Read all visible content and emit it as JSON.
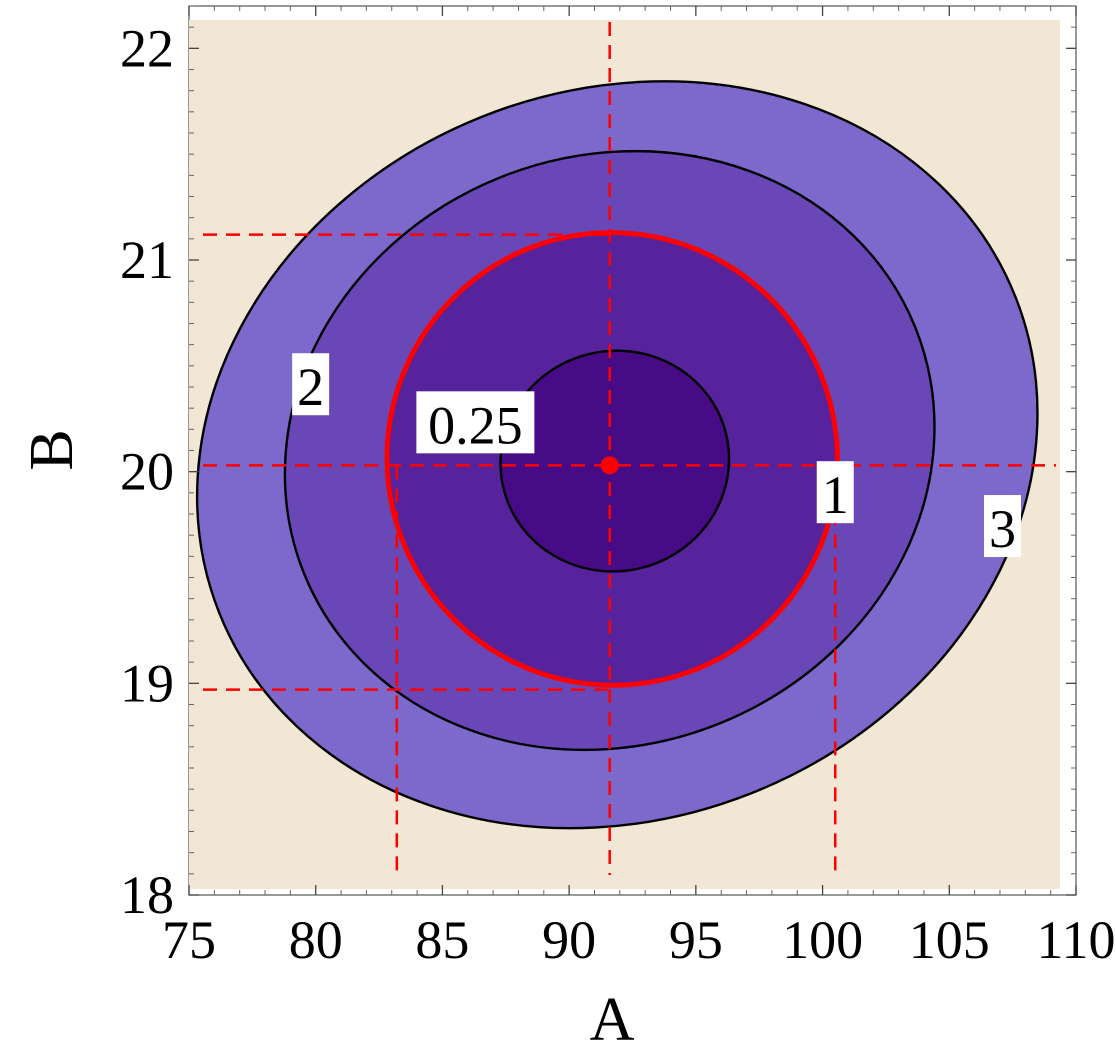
{
  "chart_data": {
    "type": "contour",
    "title": "",
    "xlabel": "A",
    "ylabel": "B",
    "xlim": [
      75,
      110
    ],
    "ylim": [
      18,
      22.2
    ],
    "xticks": [
      75,
      80,
      85,
      90,
      95,
      100,
      105,
      110
    ],
    "yticks": [
      18,
      19,
      20,
      21,
      22
    ],
    "xtick_labels": [
      "75",
      "80",
      "85",
      "90",
      "95",
      "100",
      "105",
      "110"
    ],
    "ytick_labels": [
      "18",
      "19",
      "20",
      "21",
      "22"
    ],
    "grid": false,
    "best_fit": {
      "A": 91.6,
      "B": 20.03
    },
    "contours": [
      {
        "level_label": "3",
        "center": [
          91.9,
          20.08
        ],
        "semi_axes": [
          16.9,
          1.72
        ],
        "tilt_deg": -21.6,
        "fill": "#7d69cc",
        "stroke": "#000000"
      },
      {
        "level_label": "2",
        "center": [
          91.6,
          20.1
        ],
        "semi_axes": [
          13.0,
          1.39
        ],
        "tilt_deg": -21.9,
        "fill": "#6a47b6",
        "stroke": "#000000"
      },
      {
        "level_label": "1",
        "center": [
          91.7,
          20.06
        ],
        "semi_axes": [
          8.88,
          1.07
        ],
        "tilt_deg": -20.0,
        "fill": "#57239c",
        "stroke": "#ff0000"
      },
      {
        "level_label": "0.25",
        "center": [
          91.8,
          20.05
        ],
        "semi_axes": [
          4.52,
          0.52
        ],
        "tilt_deg": -14.3,
        "fill": "#460b85",
        "stroke": "#000000"
      }
    ],
    "label_positions": [
      {
        "text": "2",
        "A": 79.8,
        "B": 20.38
      },
      {
        "text": "0.25",
        "A": 86.3,
        "B": 20.2
      },
      {
        "text": "1",
        "A": 100.5,
        "B": 19.87
      },
      {
        "text": "3",
        "A": 107.1,
        "B": 19.71
      }
    ],
    "reference_lines": {
      "vertical_A": [
        83.2,
        91.6,
        100.5
      ],
      "horizontal_B": [
        21.12,
        20.03,
        18.97
      ],
      "color": "#ff0000"
    },
    "background_color": "#f2e6d4"
  }
}
